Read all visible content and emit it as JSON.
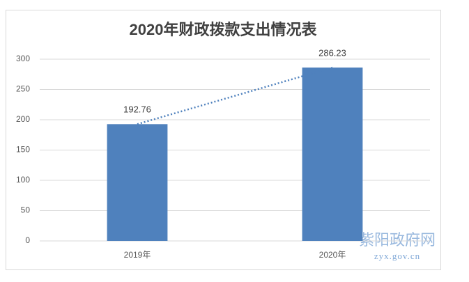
{
  "chart_data": {
    "type": "bar",
    "title": "2020年财政拨款支出情况表",
    "categories": [
      "2019年",
      "2020年"
    ],
    "values": [
      192.76,
      286.23
    ],
    "value_labels": [
      "192.76",
      "286.23"
    ],
    "color": "#4f81bd",
    "ylim": [
      0,
      300
    ],
    "yticks": [
      0,
      50,
      100,
      150,
      200,
      250,
      300
    ],
    "grid": true,
    "trendline": true,
    "trendline_color": "#4f81bd"
  },
  "watermark": {
    "name": "紫阳政府网",
    "url": "zyx.gov.cn"
  }
}
